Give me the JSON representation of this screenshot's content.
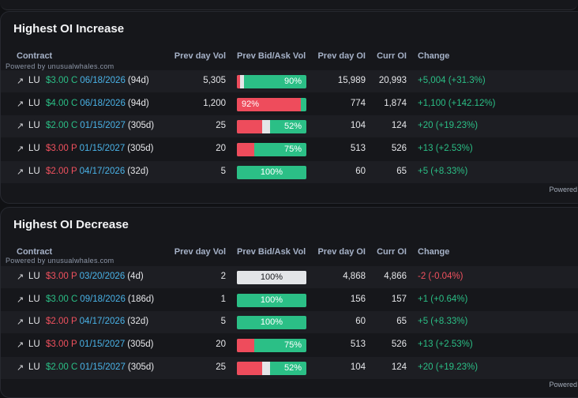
{
  "watermark": "Powered by unusualwhales.com",
  "powered_label": "Powered",
  "columns": [
    "Contract",
    "Prev day Vol",
    "Prev Bid/Ask Vol",
    "Prev day OI",
    "Curr OI",
    "Change"
  ],
  "colors": {
    "call": "#2bbf86",
    "put": "#f0515e",
    "expiry": "#4ab3e8",
    "ask": "#2bbf86",
    "bid": "#ee4c5c",
    "mid": "#e3e5e8"
  },
  "increase": {
    "title": "Highest OI Increase",
    "rows": [
      {
        "arrow": "↗",
        "ticker": "LU",
        "strike": "$3.00",
        "cp": "C",
        "type": "call",
        "expiry": "06/18/2026",
        "dte": "(94d)",
        "prev_vol": "5,305",
        "bid_pct": 0.04,
        "mid_pct": 0.06,
        "bar_label": "90%",
        "bar_label_side": "right",
        "prev_oi": "15,989",
        "curr_oi": "20,993",
        "change": "+5,004 (+31.3%)",
        "change_dir": "up"
      },
      {
        "arrow": "↗",
        "ticker": "LU",
        "strike": "$4.00",
        "cp": "C",
        "type": "call",
        "expiry": "06/18/2026",
        "dte": "(94d)",
        "prev_vol": "1,200",
        "bid_pct": 0.92,
        "mid_pct": 0.0,
        "bar_label": "92%",
        "bar_label_side": "left",
        "prev_oi": "774",
        "curr_oi": "1,874",
        "change": "+1,100 (+142.12%)",
        "change_dir": "up"
      },
      {
        "arrow": "↗",
        "ticker": "LU",
        "strike": "$2.00",
        "cp": "C",
        "type": "call",
        "expiry": "01/15/2027",
        "dte": "(305d)",
        "prev_vol": "25",
        "bid_pct": 0.36,
        "mid_pct": 0.12,
        "bar_label": "52%",
        "bar_label_side": "right",
        "prev_oi": "104",
        "curr_oi": "124",
        "change": "+20 (+19.23%)",
        "change_dir": "up"
      },
      {
        "arrow": "↗",
        "ticker": "LU",
        "strike": "$3.00",
        "cp": "P",
        "type": "put",
        "expiry": "01/15/2027",
        "dte": "(305d)",
        "prev_vol": "20",
        "bid_pct": 0.25,
        "mid_pct": 0.0,
        "bar_label": "75%",
        "bar_label_side": "right",
        "prev_oi": "513",
        "curr_oi": "526",
        "change": "+13 (+2.53%)",
        "change_dir": "up"
      },
      {
        "arrow": "↗",
        "ticker": "LU",
        "strike": "$2.00",
        "cp": "P",
        "type": "put",
        "expiry": "04/17/2026",
        "dte": "(32d)",
        "prev_vol": "5",
        "bid_pct": 0.0,
        "mid_pct": 0.0,
        "bar_label": "100%",
        "bar_label_side": "center",
        "prev_oi": "60",
        "curr_oi": "65",
        "change": "+5 (+8.33%)",
        "change_dir": "up"
      }
    ]
  },
  "decrease": {
    "title": "Highest OI Decrease",
    "rows": [
      {
        "arrow": "↗",
        "ticker": "LU",
        "strike": "$3.00",
        "cp": "P",
        "type": "put",
        "expiry": "03/20/2026",
        "dte": "(4d)",
        "prev_vol": "2",
        "bid_pct": 0.0,
        "mid_pct": 1.0,
        "bar_label": "100%",
        "bar_label_side": "center",
        "neutral": true,
        "prev_oi": "4,868",
        "curr_oi": "4,866",
        "change": "-2 (-0.04%)",
        "change_dir": "down"
      },
      {
        "arrow": "↗",
        "ticker": "LU",
        "strike": "$3.00",
        "cp": "C",
        "type": "call",
        "expiry": "09/18/2026",
        "dte": "(186d)",
        "prev_vol": "1",
        "bid_pct": 0.0,
        "mid_pct": 0.0,
        "bar_label": "100%",
        "bar_label_side": "center",
        "prev_oi": "156",
        "curr_oi": "157",
        "change": "+1 (+0.64%)",
        "change_dir": "up"
      },
      {
        "arrow": "↗",
        "ticker": "LU",
        "strike": "$2.00",
        "cp": "P",
        "type": "put",
        "expiry": "04/17/2026",
        "dte": "(32d)",
        "prev_vol": "5",
        "bid_pct": 0.0,
        "mid_pct": 0.0,
        "bar_label": "100%",
        "bar_label_side": "center",
        "prev_oi": "60",
        "curr_oi": "65",
        "change": "+5 (+8.33%)",
        "change_dir": "up"
      },
      {
        "arrow": "↗",
        "ticker": "LU",
        "strike": "$3.00",
        "cp": "P",
        "type": "put",
        "expiry": "01/15/2027",
        "dte": "(305d)",
        "prev_vol": "20",
        "bid_pct": 0.25,
        "mid_pct": 0.0,
        "bar_label": "75%",
        "bar_label_side": "right",
        "prev_oi": "513",
        "curr_oi": "526",
        "change": "+13 (+2.53%)",
        "change_dir": "up"
      },
      {
        "arrow": "↗",
        "ticker": "LU",
        "strike": "$2.00",
        "cp": "C",
        "type": "call",
        "expiry": "01/15/2027",
        "dte": "(305d)",
        "prev_vol": "25",
        "bid_pct": 0.36,
        "mid_pct": 0.12,
        "bar_label": "52%",
        "bar_label_side": "right",
        "prev_oi": "104",
        "curr_oi": "124",
        "change": "+20 (+19.23%)",
        "change_dir": "up"
      }
    ]
  }
}
